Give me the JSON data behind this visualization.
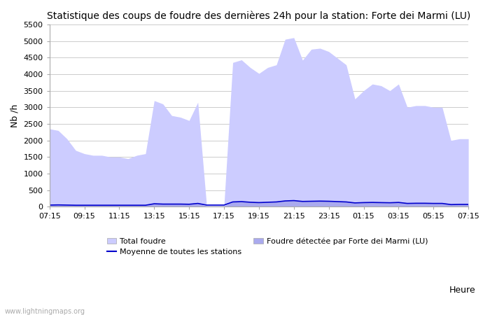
{
  "title": "Statistique des coups de foudre des dernières 24h pour la station: Forte dei Marmi (LU)",
  "ylabel": "Nb /h",
  "xlabel": "Heure",
  "watermark": "www.lightningmaps.org",
  "ylim": [
    0,
    5500
  ],
  "yticks": [
    0,
    500,
    1000,
    1500,
    2000,
    2500,
    3000,
    3500,
    4000,
    4500,
    5000,
    5500
  ],
  "x_labels": [
    "07:15",
    "09:15",
    "11:15",
    "13:15",
    "15:15",
    "17:15",
    "19:15",
    "21:15",
    "23:15",
    "01:15",
    "03:15",
    "05:15",
    "07:15"
  ],
  "total_foudre_color": "#ccccff",
  "detected_foudre_color": "#aaaaee",
  "moyenne_color": "#0000cc",
  "background_color": "#ffffff",
  "grid_color": "#cccccc",
  "title_fontsize": 10,
  "axis_fontsize": 9,
  "tick_fontsize": 8,
  "legend_fontsize": 8,
  "x_indices": [
    0,
    1,
    2,
    3,
    4,
    5,
    6,
    7,
    8,
    9,
    10,
    11,
    12,
    13,
    14,
    15,
    16,
    17,
    18,
    19,
    20,
    21,
    22,
    23,
    24,
    25,
    26,
    27,
    28,
    29,
    30,
    31,
    32,
    33,
    34,
    35,
    36,
    37,
    38,
    39,
    40,
    41,
    42,
    43,
    44,
    45,
    46,
    47,
    48
  ],
  "total_foudre": [
    2350,
    2300,
    2050,
    1700,
    1600,
    1550,
    1550,
    1500,
    1500,
    1450,
    1550,
    1600,
    3200,
    3100,
    2750,
    2700,
    2600,
    3150,
    50,
    50,
    50,
    4350,
    4430,
    4200,
    4020,
    4200,
    4280,
    5050,
    5100,
    4420,
    4750,
    4780,
    4680,
    4480,
    4280,
    3250,
    3500,
    3700,
    3650,
    3500,
    3700,
    3000,
    3050,
    3050,
    3000,
    3000,
    2000,
    2050,
    2050
  ],
  "detected_foudre": [
    50,
    50,
    50,
    40,
    40,
    40,
    40,
    40,
    40,
    40,
    40,
    40,
    90,
    80,
    80,
    80,
    75,
    100,
    20,
    20,
    20,
    140,
    150,
    130,
    120,
    130,
    140,
    170,
    180,
    155,
    160,
    165,
    160,
    150,
    140,
    110,
    120,
    125,
    120,
    115,
    125,
    95,
    100,
    100,
    95,
    95,
    60,
    65,
    65
  ],
  "moyenne": [
    50,
    55,
    50,
    45,
    45,
    45,
    45,
    45,
    45,
    45,
    45,
    45,
    90,
    80,
    80,
    80,
    75,
    100,
    50,
    50,
    50,
    145,
    155,
    135,
    125,
    135,
    145,
    175,
    185,
    160,
    165,
    170,
    165,
    155,
    145,
    115,
    125,
    130,
    125,
    120,
    130,
    100,
    105,
    105,
    100,
    100,
    65,
    70,
    70
  ]
}
